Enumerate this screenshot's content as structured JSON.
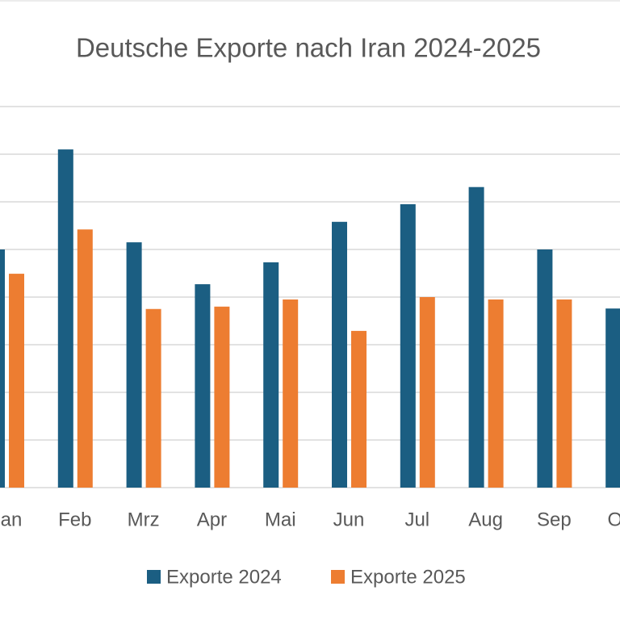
{
  "chart_data": {
    "type": "bar",
    "title": "Deutsche Exporte nach Iran 2024-2025",
    "categories": [
      "Jan",
      "Feb",
      "Mrz",
      "Apr",
      "Mai",
      "Jun",
      "Jul",
      "Aug",
      "Sep",
      "Okt"
    ],
    "series": [
      {
        "name": "Exporte 2024",
        "color": "#1b5e82",
        "values": [
          5.0,
          7.1,
          5.15,
          4.27,
          4.73,
          5.58,
          5.95,
          6.31,
          5.0,
          3.76
        ]
      },
      {
        "name": "Exporte 2025",
        "color": "#ed7d31",
        "values": [
          4.49,
          5.42,
          3.75,
          3.8,
          3.95,
          3.29,
          4.0,
          3.95,
          3.95,
          null
        ]
      }
    ],
    "ylim": [
      0,
      8
    ],
    "yticks": [
      0,
      1,
      2,
      3,
      4,
      5,
      6,
      7,
      8
    ],
    "grid": true,
    "legend": "bottom"
  }
}
